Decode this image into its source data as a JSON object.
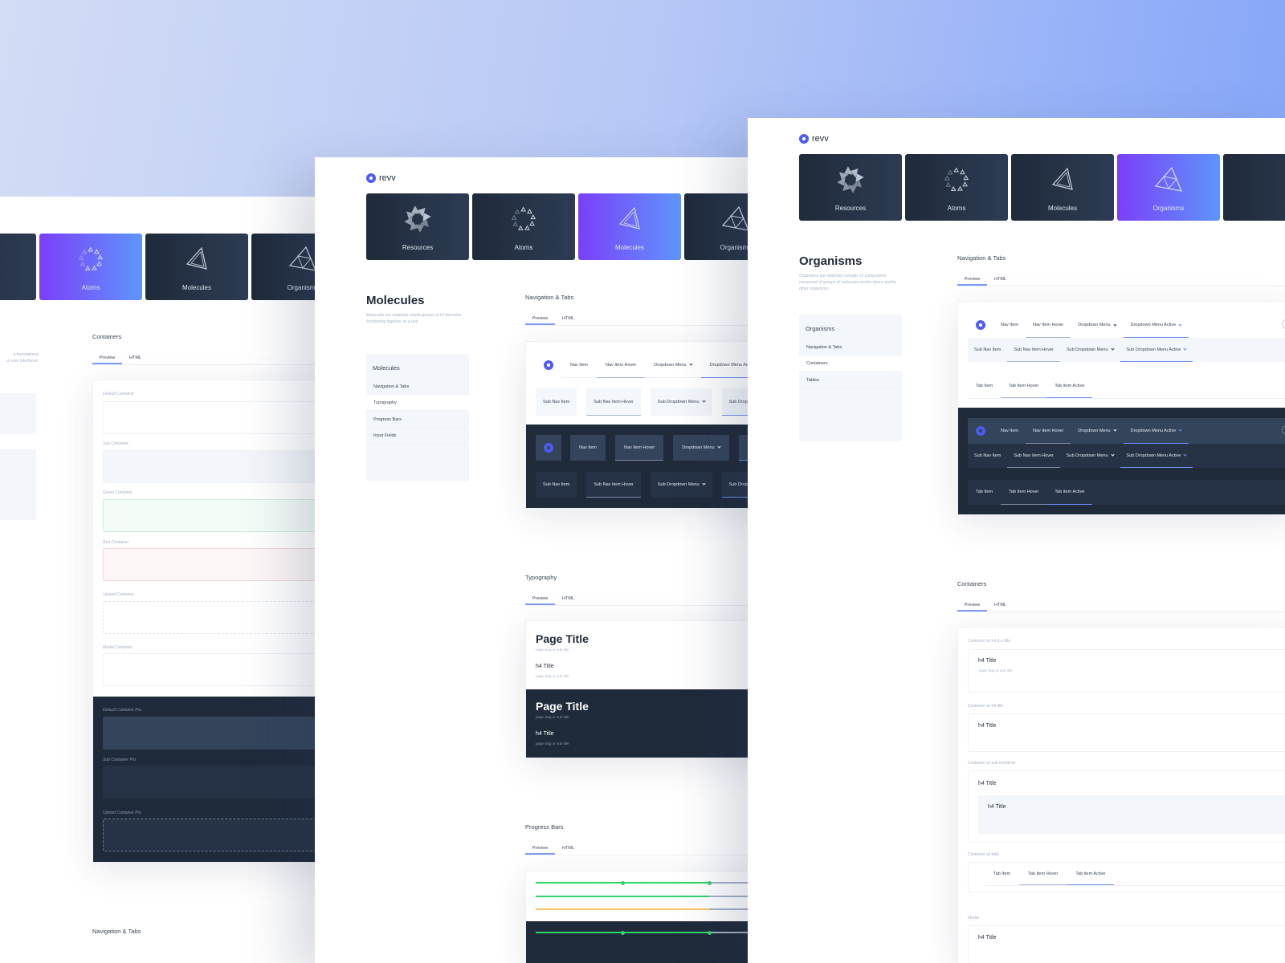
{
  "brand": "revv",
  "colors": {
    "accent": "#4b5cf2",
    "active_gradient": [
      "#7b3ff9",
      "#5e95fc"
    ],
    "dark": "#1f2a3a",
    "success": "#2fd66a",
    "warning": "#ffc468"
  },
  "categories": [
    "Resources",
    "Atoms",
    "Molecules",
    "Organisms"
  ],
  "atoms_panel": {
    "active_category": "Atoms",
    "description_lines": [
      "e foundational",
      "ur user interfaces."
    ],
    "containers": {
      "title": "Containers",
      "tabs": [
        "Preview",
        "HTML"
      ],
      "light": [
        "Default Container",
        "Sub Container",
        "Green Container",
        "Red Container",
        "Upload Container",
        "Modal Container"
      ],
      "dark": [
        "Default Container Pro",
        "Sub Container Pro",
        "Upload Container Pro"
      ]
    },
    "next_section": "Navigation & Tabs"
  },
  "molecules_panel": {
    "active_category": "Molecules",
    "title": "Molecules",
    "description": "Molecules are relatively simple groups of UI elements functioning together as a unit.",
    "sidebar": {
      "title": "Molecules",
      "items": [
        "Navigation & Tabs",
        "Typography",
        "Progress Bars",
        "Input Fields"
      ],
      "selected": "Typography"
    },
    "nav_tabs": {
      "title": "Navigation & Tabs",
      "tabs": [
        "Preview",
        "HTML"
      ],
      "nav": [
        "Nav Item",
        "Nav Item Hover",
        "Dropdown Menu",
        "Dropdown Menu Active"
      ],
      "sub": [
        "Sub Nav Item",
        "Sub Nav Item Hover",
        "Sub Dropdown Menu",
        "Sub Dropdown Menu Active"
      ]
    },
    "typography": {
      "title": "Typography",
      "tabs": [
        "Preview",
        "HTML"
      ],
      "page_title": "Page Title",
      "h4": "h4 Title",
      "slug": "page slug or sub title"
    },
    "progress": {
      "title": "Progress Bars",
      "tabs": [
        "Preview",
        "HTML"
      ],
      "bars": [
        {
          "color": "#2fd66a",
          "percent": 50,
          "markers": [
            25,
            50
          ]
        },
        {
          "color": "#2fd66a",
          "percent": 50
        },
        {
          "color": "#ffc468",
          "percent": 50
        }
      ],
      "dark_bars": [
        {
          "color": "#2fd66a",
          "percent": 50,
          "markers": [
            25,
            50
          ]
        }
      ]
    }
  },
  "organisms_panel": {
    "active_category": "Organisms",
    "title": "Organisms",
    "description": "Organisms are relatively complex UI components composed of groups of molecules and/or atoms and/or other organisms.",
    "sidebar": {
      "title": "Organisms",
      "items": [
        "Navigation & Tabs",
        "Containers",
        "Tables"
      ],
      "selected": "Containers"
    },
    "nav_tabs": {
      "title": "Navigation & Tabs",
      "tabs": [
        "Preview",
        "HTML"
      ],
      "nav": [
        "Nav Item",
        "Nav Item Hover",
        "Dropdown Menu",
        "Dropdown Menu Active"
      ],
      "sub": [
        "Sub Nav Item",
        "Sub Nav Item Hover",
        "Sub Dropdown Menu",
        "Sub Dropdown Menu Active"
      ],
      "tab_items": [
        "Tab Item",
        "Tab Item Hover",
        "Tab item Active"
      ]
    },
    "containers": {
      "title": "Containers",
      "tabs": [
        "Preview",
        "HTML"
      ],
      "labels": [
        "Container w/ h4 & p title",
        "Container w/ h4 title",
        "Container w/ sub container",
        "Container w/ tabs",
        "Modal"
      ],
      "h4": "h4 Title",
      "slug": "page slug or sub title",
      "tab_items": [
        "Tab Item",
        "Tab Item Hover",
        "Tab item Active"
      ]
    }
  }
}
